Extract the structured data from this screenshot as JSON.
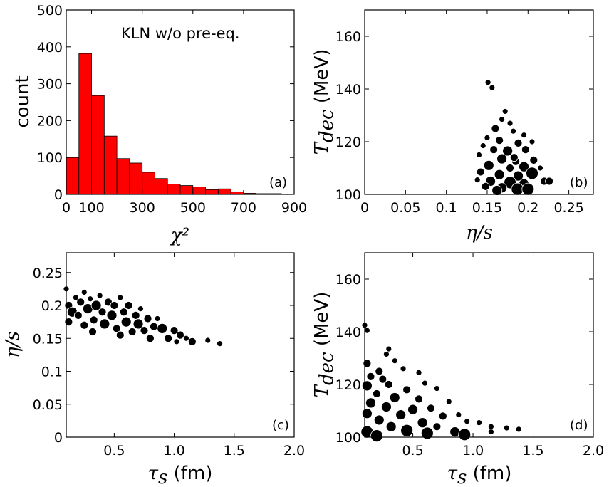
{
  "chart_data": [
    {
      "id": "a",
      "type": "bar",
      "panel_label": "(a)",
      "annotation": "KLN w/o pre-eq.",
      "xlabel": "χ²",
      "ylabel": "count",
      "xlim": [
        0,
        900
      ],
      "ylim": [
        0,
        500
      ],
      "xticks": [
        0,
        100,
        300,
        500,
        700,
        900
      ],
      "yticks": [
        0,
        100,
        200,
        300,
        400,
        500
      ],
      "bar_color": "#ff0000",
      "bin_width": 50,
      "bin_starts": [
        0,
        50,
        100,
        150,
        200,
        250,
        300,
        350,
        400,
        450,
        500,
        550,
        600,
        650,
        700,
        750,
        800,
        850
      ],
      "values": [
        100,
        382,
        268,
        158,
        97,
        85,
        60,
        43,
        28,
        24,
        20,
        13,
        15,
        7,
        3,
        2,
        2,
        1
      ]
    },
    {
      "id": "b",
      "type": "scatter",
      "panel_label": "(b)",
      "xlabel": "η/s",
      "ylabel_main": "T",
      "ylabel_sub": "dec",
      "ylabel_unit": " (MeV)",
      "xlim": [
        0,
        0.28
      ],
      "ylim": [
        100,
        170
      ],
      "xticks": [
        "0",
        "0.05",
        "0.1",
        "0.15",
        "0.2",
        "0.25"
      ],
      "xtick_values": [
        0,
        0.05,
        0.1,
        0.15,
        0.2,
        0.25
      ],
      "yticks": [
        100,
        120,
        140,
        160
      ],
      "points": [
        [
          0.151,
          142.5,
          1
        ],
        [
          0.156,
          140.5,
          1
        ],
        [
          0.172,
          131.5,
          1
        ],
        [
          0.168,
          128.5,
          1
        ],
        [
          0.178,
          127,
          1
        ],
        [
          0.16,
          125,
          2
        ],
        [
          0.182,
          124,
          1
        ],
        [
          0.195,
          122.5,
          1
        ],
        [
          0.15,
          121.5,
          1
        ],
        [
          0.165,
          120.5,
          2
        ],
        [
          0.188,
          119.5,
          2
        ],
        [
          0.205,
          120,
          1
        ],
        [
          0.145,
          118.5,
          1
        ],
        [
          0.158,
          117,
          2
        ],
        [
          0.175,
          116.5,
          3
        ],
        [
          0.197,
          117,
          2
        ],
        [
          0.14,
          115,
          1
        ],
        [
          0.168,
          113.5,
          3
        ],
        [
          0.185,
          112.5,
          2
        ],
        [
          0.207,
          113,
          2
        ],
        [
          0.152,
          111,
          3
        ],
        [
          0.178,
          110,
          2
        ],
        [
          0.195,
          110.5,
          3
        ],
        [
          0.215,
          110,
          1
        ],
        [
          0.142,
          108.5,
          2
        ],
        [
          0.165,
          107.5,
          3
        ],
        [
          0.188,
          107,
          3
        ],
        [
          0.205,
          108,
          4
        ],
        [
          0.154,
          105,
          3
        ],
        [
          0.178,
          104.5,
          4
        ],
        [
          0.195,
          104,
          3
        ],
        [
          0.22,
          105,
          2
        ],
        [
          0.226,
          105,
          2
        ],
        [
          0.148,
          103,
          2
        ],
        [
          0.168,
          102.5,
          3
        ],
        [
          0.187,
          102,
          4
        ],
        [
          0.2,
          102,
          4
        ],
        [
          0.138,
          105.5,
          1
        ],
        [
          0.162,
          101.5,
          3
        ],
        [
          0.183,
          114,
          2
        ]
      ]
    },
    {
      "id": "c",
      "type": "scatter",
      "panel_label": "(c)",
      "xlabel_main": "τ",
      "xlabel_sub": "s",
      "xlabel_unit": " (fm)",
      "ylabel": "η/s",
      "xlim": [
        0.1,
        2.0
      ],
      "ylim": [
        0,
        0.28
      ],
      "xticks": [
        "0.5",
        "1.0",
        "1.5",
        "2.0"
      ],
      "xtick_values": [
        0.5,
        1.0,
        1.5,
        2.0
      ],
      "yticks": [
        "0",
        "0.05",
        "0.1",
        "0.15",
        "0.2",
        "0.25"
      ],
      "ytick_values": [
        0,
        0.05,
        0.1,
        0.15,
        0.2,
        0.25
      ],
      "points": [
        [
          0.1,
          0.225,
          1
        ],
        [
          0.12,
          0.2,
          2
        ],
        [
          0.15,
          0.19,
          3
        ],
        [
          0.12,
          0.175,
          2
        ],
        [
          0.18,
          0.212,
          1
        ],
        [
          0.22,
          0.205,
          2
        ],
        [
          0.25,
          0.22,
          1
        ],
        [
          0.28,
          0.195,
          3
        ],
        [
          0.3,
          0.21,
          1
        ],
        [
          0.33,
          0.178,
          2
        ],
        [
          0.35,
          0.2,
          3
        ],
        [
          0.38,
          0.215,
          1
        ],
        [
          0.4,
          0.19,
          2
        ],
        [
          0.42,
          0.172,
          3
        ],
        [
          0.45,
          0.205,
          2
        ],
        [
          0.48,
          0.185,
          3
        ],
        [
          0.5,
          0.2,
          2
        ],
        [
          0.52,
          0.165,
          2
        ],
        [
          0.55,
          0.212,
          1
        ],
        [
          0.58,
          0.19,
          2
        ],
        [
          0.6,
          0.175,
          3
        ],
        [
          0.62,
          0.2,
          2
        ],
        [
          0.65,
          0.16,
          2
        ],
        [
          0.68,
          0.185,
          2
        ],
        [
          0.7,
          0.172,
          3
        ],
        [
          0.72,
          0.195,
          1
        ],
        [
          0.75,
          0.162,
          2
        ],
        [
          0.78,
          0.18,
          2
        ],
        [
          0.8,
          0.15,
          2
        ],
        [
          0.83,
          0.168,
          2
        ],
        [
          0.86,
          0.18,
          1
        ],
        [
          0.9,
          0.165,
          3
        ],
        [
          0.95,
          0.15,
          2
        ],
        [
          1.0,
          0.162,
          2
        ],
        [
          1.02,
          0.145,
          1
        ],
        [
          1.05,
          0.155,
          2
        ],
        [
          1.1,
          0.15,
          1
        ],
        [
          1.15,
          0.145,
          2
        ],
        [
          1.28,
          0.147,
          1
        ],
        [
          1.38,
          0.142,
          1
        ],
        [
          0.2,
          0.185,
          2
        ],
        [
          0.25,
          0.17,
          2
        ],
        [
          0.32,
          0.16,
          2
        ],
        [
          0.55,
          0.155,
          2
        ]
      ]
    },
    {
      "id": "d",
      "type": "scatter",
      "panel_label": "(d)",
      "xlabel_main": "τ",
      "xlabel_sub": "s",
      "xlabel_unit": " (fm)",
      "ylabel_main": "T",
      "ylabel_sub": "dec",
      "ylabel_unit": " (MeV)",
      "xlim": [
        0.1,
        2.0
      ],
      "ylim": [
        100,
        170
      ],
      "xticks": [
        "0.5",
        "1.0",
        "1.5",
        "2.0"
      ],
      "xtick_values": [
        0.5,
        1.0,
        1.5,
        2.0
      ],
      "yticks": [
        100,
        120,
        140,
        160
      ],
      "points": [
        [
          0.1,
          142.5,
          1
        ],
        [
          0.12,
          140.5,
          1
        ],
        [
          0.3,
          133.5,
          1
        ],
        [
          0.28,
          131.5,
          1
        ],
        [
          0.12,
          128,
          2
        ],
        [
          0.35,
          129,
          1
        ],
        [
          0.22,
          125,
          2
        ],
        [
          0.42,
          126,
          1
        ],
        [
          0.15,
          123,
          2
        ],
        [
          0.25,
          122,
          2
        ],
        [
          0.55,
          124.5,
          1
        ],
        [
          0.3,
          120,
          2
        ],
        [
          0.12,
          119.5,
          3
        ],
        [
          0.6,
          120.5,
          1
        ],
        [
          0.45,
          118,
          2
        ],
        [
          0.2,
          116.5,
          2
        ],
        [
          0.7,
          118.5,
          1
        ],
        [
          0.35,
          115,
          3
        ],
        [
          0.55,
          114.5,
          2
        ],
        [
          0.15,
          113,
          3
        ],
        [
          0.8,
          113.5,
          1
        ],
        [
          0.28,
          111.5,
          3
        ],
        [
          0.5,
          110.5,
          3
        ],
        [
          0.65,
          111,
          2
        ],
        [
          0.12,
          109,
          3
        ],
        [
          0.4,
          108.5,
          3
        ],
        [
          0.75,
          108,
          2
        ],
        [
          0.88,
          108.5,
          1
        ],
        [
          0.22,
          106.5,
          3
        ],
        [
          0.58,
          105.5,
          3
        ],
        [
          0.95,
          106,
          1
        ],
        [
          1.05,
          105.5,
          1
        ],
        [
          0.32,
          104,
          3
        ],
        [
          0.7,
          104,
          2
        ],
        [
          1.15,
          104,
          1
        ],
        [
          0.12,
          102,
          4
        ],
        [
          0.45,
          102.5,
          4
        ],
        [
          0.62,
          101.5,
          4
        ],
        [
          0.85,
          102,
          3
        ],
        [
          0.93,
          101,
          4
        ],
        [
          1.28,
          103.5,
          1
        ],
        [
          1.38,
          103,
          1
        ],
        [
          1.15,
          102,
          1
        ],
        [
          0.2,
          100.5,
          4
        ]
      ]
    }
  ]
}
